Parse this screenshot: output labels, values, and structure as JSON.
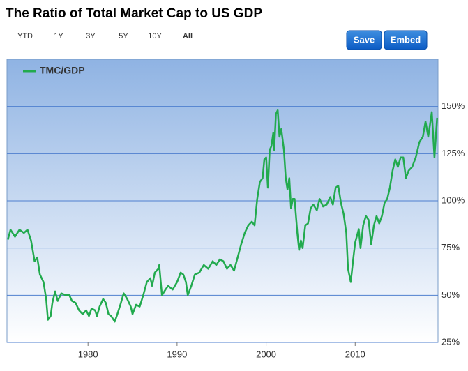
{
  "chart_data": {
    "type": "line",
    "title": "The Ratio of Total Market Cap to US GDP",
    "range_buttons": [
      "YTD",
      "1Y",
      "3Y",
      "5Y",
      "10Y",
      "All"
    ],
    "action_buttons": [
      "Save",
      "Embed"
    ],
    "legend": "top-left",
    "grid": true,
    "xlim": [
      1970.9,
      2019.3
    ],
    "ylim": [
      25,
      175
    ],
    "xticks": [
      1980,
      1990,
      2000,
      2010
    ],
    "yticks": [
      {
        "value": 25,
        "label": "25%"
      },
      {
        "value": 50,
        "label": "50%"
      },
      {
        "value": 75,
        "label": "75%"
      },
      {
        "value": 100,
        "label": "100%"
      },
      {
        "value": 125,
        "label": "125%"
      },
      {
        "value": 150,
        "label": "150%"
      }
    ],
    "x": [
      1971.0,
      1971.3,
      1971.8,
      1972.3,
      1972.8,
      1973.2,
      1973.6,
      1974.0,
      1974.3,
      1974.6,
      1975.0,
      1975.3,
      1975.5,
      1975.8,
      1976.0,
      1976.3,
      1976.6,
      1977.0,
      1977.5,
      1977.9,
      1978.2,
      1978.6,
      1979.0,
      1979.4,
      1979.8,
      1980.1,
      1980.4,
      1980.8,
      1981.0,
      1981.3,
      1981.7,
      1982.0,
      1982.3,
      1982.6,
      1983.0,
      1983.3,
      1983.7,
      1984.0,
      1984.4,
      1984.8,
      1985.0,
      1985.4,
      1985.8,
      1986.2,
      1986.6,
      1987.0,
      1987.2,
      1987.5,
      1987.9,
      1988.0,
      1988.3,
      1988.7,
      1989.0,
      1989.5,
      1990.0,
      1990.4,
      1990.7,
      1991.0,
      1991.2,
      1991.6,
      1992.0,
      1992.5,
      1993.0,
      1993.5,
      1994.0,
      1994.4,
      1994.8,
      1995.2,
      1995.6,
      1996.0,
      1996.4,
      1996.8,
      1997.2,
      1997.6,
      1998.0,
      1998.4,
      1998.7,
      1999.0,
      1999.3,
      1999.6,
      1999.8,
      2000.0,
      2000.2,
      2000.4,
      2000.6,
      2000.8,
      2000.9,
      2001.1,
      2001.3,
      2001.5,
      2001.7,
      2002.0,
      2002.2,
      2002.4,
      2002.6,
      2002.8,
      2003.0,
      2003.2,
      2003.5,
      2003.7,
      2003.9,
      2004.1,
      2004.4,
      2004.7,
      2005.0,
      2005.3,
      2005.7,
      2006.0,
      2006.4,
      2006.8,
      2007.2,
      2007.5,
      2007.8,
      2008.1,
      2008.4,
      2008.7,
      2009.0,
      2009.2,
      2009.5,
      2009.8,
      2010.0,
      2010.4,
      2010.6,
      2010.9,
      2011.2,
      2011.5,
      2011.8,
      2012.1,
      2012.4,
      2012.7,
      2013.0,
      2013.3,
      2013.6,
      2013.9,
      2014.2,
      2014.5,
      2014.8,
      2015.1,
      2015.4,
      2015.7,
      2016.0,
      2016.4,
      2016.8,
      2017.2,
      2017.6,
      2017.9,
      2018.2,
      2018.6,
      2018.9,
      2019.2
    ],
    "series": [
      {
        "name": "TMC/GDP",
        "color": "#22aa4e",
        "values": [
          79.5,
          84.7,
          81,
          84.7,
          83,
          84.7,
          79,
          68,
          70,
          61,
          57,
          48,
          37,
          39,
          46,
          52,
          47,
          51,
          50,
          50,
          47,
          46,
          42,
          40,
          42,
          39,
          43,
          42,
          39,
          44,
          48,
          46,
          40,
          39,
          36,
          40,
          46,
          51,
          48,
          44,
          40,
          45,
          44,
          50,
          57,
          59,
          55,
          62,
          64,
          66,
          50,
          53,
          55,
          53,
          57,
          62,
          61,
          57,
          50,
          55,
          61,
          62,
          66,
          64,
          68,
          66,
          69,
          68,
          64,
          66,
          63,
          70,
          77,
          83,
          87,
          89,
          87,
          101,
          110,
          112,
          122,
          123,
          107,
          127,
          129,
          136,
          127,
          146,
          148,
          134,
          138,
          127,
          112,
          106,
          112,
          96,
          101,
          101,
          83,
          74,
          79,
          75,
          87,
          88,
          96,
          98,
          95,
          101,
          97,
          98,
          102,
          98,
          107,
          108,
          99,
          93,
          83,
          64,
          57,
          70,
          78,
          85,
          75,
          87,
          92,
          90,
          77,
          87,
          92,
          88,
          92,
          99,
          101,
          107,
          116,
          122,
          118,
          123,
          123,
          112,
          116,
          118,
          123,
          131,
          134,
          142,
          134,
          147,
          123,
          144
        ]
      }
    ]
  }
}
